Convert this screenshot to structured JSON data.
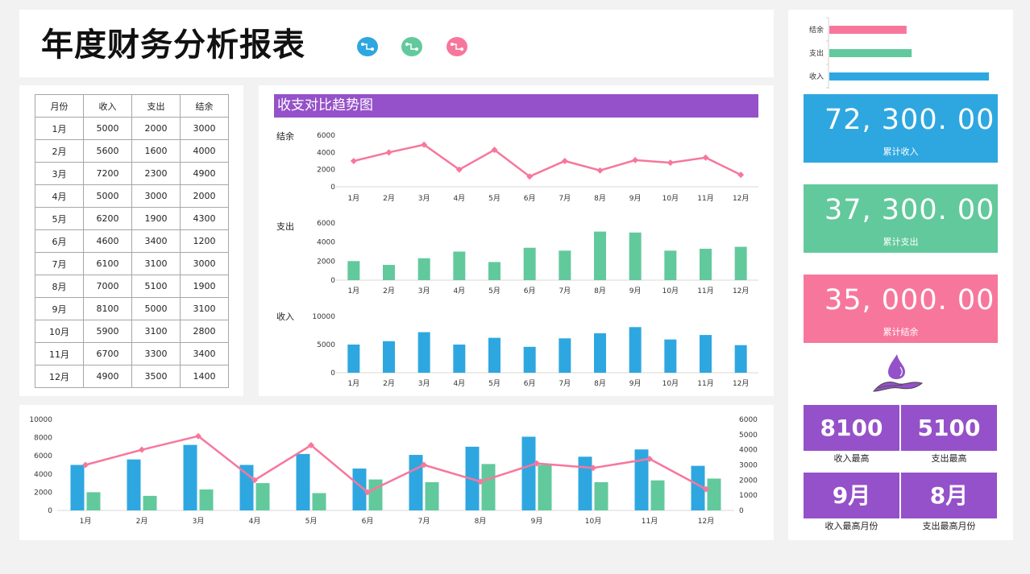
{
  "header": {
    "title": "年度财务分析报表",
    "icons": [
      {
        "name": "flow-icon-blue",
        "color": "#2ea7e0"
      },
      {
        "name": "flow-icon-green",
        "color": "#62c99c"
      },
      {
        "name": "flow-icon-pink",
        "color": "#f7779c"
      }
    ]
  },
  "colors": {
    "income": "#2ea7e0",
    "expense": "#62c99c",
    "balance": "#f7779c",
    "accent": "#9551c9",
    "background": "#f2f2f2"
  },
  "table": {
    "headers": [
      "月份",
      "收入",
      "支出",
      "结余"
    ],
    "rows": [
      [
        "1月",
        "5000",
        "2000",
        "3000"
      ],
      [
        "2月",
        "5600",
        "1600",
        "4000"
      ],
      [
        "3月",
        "7200",
        "2300",
        "4900"
      ],
      [
        "4月",
        "5000",
        "3000",
        "2000"
      ],
      [
        "5月",
        "6200",
        "1900",
        "4300"
      ],
      [
        "6月",
        "4600",
        "3400",
        "1200"
      ],
      [
        "7月",
        "6100",
        "3100",
        "3000"
      ],
      [
        "8月",
        "7000",
        "5100",
        "1900"
      ],
      [
        "9月",
        "8100",
        "5000",
        "3100"
      ],
      [
        "10月",
        "5900",
        "3100",
        "2800"
      ],
      [
        "11月",
        "6700",
        "3300",
        "3400"
      ],
      [
        "12月",
        "4900",
        "3500",
        "1400"
      ]
    ]
  },
  "trend": {
    "title": "收支对比趋势图",
    "balance_label": "结余",
    "expense_label": "支出",
    "income_label": "收入"
  },
  "summary": {
    "bar_labels": [
      "结余",
      "支出",
      "收入"
    ],
    "total_income": "72, 300. 00",
    "total_income_label": "累计收入",
    "total_expense": "37, 300. 00",
    "total_expense_label": "累计支出",
    "total_balance": "35, 000. 00",
    "total_balance_label": "累计结余",
    "max_income": "8100",
    "max_income_label": "收入最高",
    "max_expense": "5100",
    "max_expense_label": "支出最高",
    "max_income_month": "9月",
    "max_income_month_label": "收入最高月份",
    "max_expense_month": "8月",
    "max_expense_month_label": "支出最高月份"
  },
  "chart_data": [
    {
      "type": "line",
      "title": "结余",
      "categories": [
        "1月",
        "2月",
        "3月",
        "4月",
        "5月",
        "6月",
        "7月",
        "8月",
        "9月",
        "10月",
        "11月",
        "12月"
      ],
      "values": [
        3000,
        4000,
        4900,
        2000,
        4300,
        1200,
        3000,
        1900,
        3100,
        2800,
        3400,
        1400
      ],
      "yticks": [
        0,
        2000,
        4000,
        6000
      ],
      "ylim": [
        0,
        6000
      ],
      "color": "#f7779c"
    },
    {
      "type": "bar",
      "title": "支出",
      "categories": [
        "1月",
        "2月",
        "3月",
        "4月",
        "5月",
        "6月",
        "7月",
        "8月",
        "9月",
        "10月",
        "11月",
        "12月"
      ],
      "values": [
        2000,
        1600,
        2300,
        3000,
        1900,
        3400,
        3100,
        5100,
        5000,
        3100,
        3300,
        3500
      ],
      "yticks": [
        0,
        2000,
        4000,
        6000
      ],
      "ylim": [
        0,
        6000
      ],
      "color": "#62c99c"
    },
    {
      "type": "bar",
      "title": "收入",
      "categories": [
        "1月",
        "2月",
        "3月",
        "4月",
        "5月",
        "6月",
        "7月",
        "8月",
        "9月",
        "10月",
        "11月",
        "12月"
      ],
      "values": [
        5000,
        5600,
        7200,
        5000,
        6200,
        4600,
        6100,
        7000,
        8100,
        5900,
        6700,
        4900
      ],
      "yticks": [
        0,
        5000,
        10000
      ],
      "ylim": [
        0,
        10000
      ],
      "color": "#2ea7e0"
    },
    {
      "type": "bar",
      "title": "",
      "categories": [
        "1月",
        "2月",
        "3月",
        "4月",
        "5月",
        "6月",
        "7月",
        "8月",
        "9月",
        "10月",
        "11月",
        "12月"
      ],
      "series": [
        {
          "name": "收入",
          "type": "bar",
          "axis": "left",
          "values": [
            5000,
            5600,
            7200,
            5000,
            6200,
            4600,
            6100,
            7000,
            8100,
            5900,
            6700,
            4900
          ],
          "color": "#2ea7e0"
        },
        {
          "name": "支出",
          "type": "bar",
          "axis": "left",
          "values": [
            2000,
            1600,
            2300,
            3000,
            1900,
            3400,
            3100,
            5100,
            5000,
            3100,
            3300,
            3500
          ],
          "color": "#62c99c"
        },
        {
          "name": "结余",
          "type": "line",
          "axis": "right",
          "values": [
            3000,
            4000,
            4900,
            2000,
            4300,
            1200,
            3000,
            1900,
            3100,
            2800,
            3400,
            1400
          ],
          "color": "#f7779c"
        }
      ],
      "yticks_left": [
        0,
        2000,
        4000,
        6000,
        8000,
        10000
      ],
      "ylim_left": [
        0,
        10000
      ],
      "yticks_right": [
        0,
        1000,
        2000,
        3000,
        4000,
        5000,
        6000
      ],
      "ylim_right": [
        0,
        6000
      ]
    },
    {
      "type": "bar",
      "orientation": "horizontal",
      "title": "",
      "categories": [
        "结余",
        "支出",
        "收入"
      ],
      "values": [
        35000,
        37300,
        72300
      ],
      "colors": [
        "#f7779c",
        "#62c99c",
        "#2ea7e0"
      ]
    }
  ]
}
